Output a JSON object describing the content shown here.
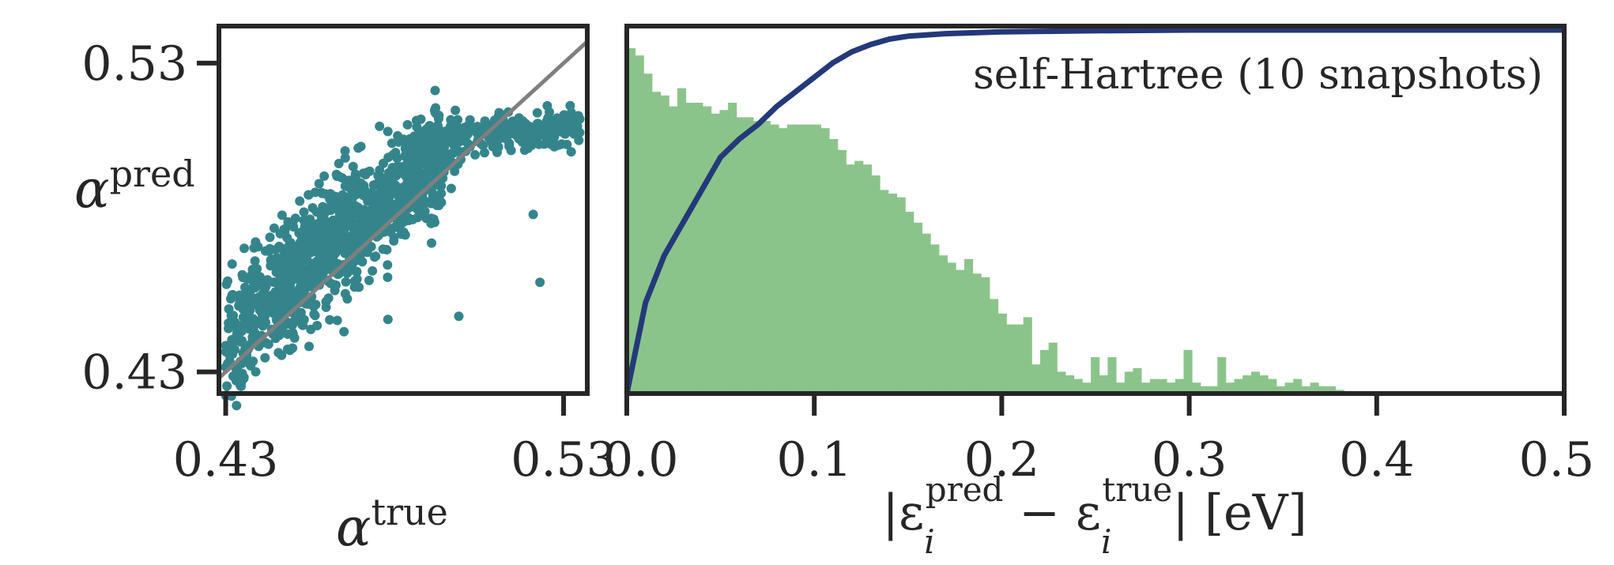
{
  "chart_data": [
    {
      "type": "scatter",
      "xlabel": {
        "symbol": "α",
        "sup": "true"
      },
      "ylabel": {
        "symbol": "α",
        "sup": "pred"
      },
      "xlim": [
        0.428,
        0.537
      ],
      "ylim": [
        0.423,
        0.542
      ],
      "xticks": [
        0.43,
        0.53
      ],
      "xtick_labels": [
        "0.43",
        "0.53"
      ],
      "yticks": [
        0.43,
        0.53
      ],
      "ytick_labels": [
        "0.43",
        "0.53"
      ],
      "reference_line": "y = x",
      "point_color": "#34858b",
      "line_color": "#7f7f7f",
      "clusters": [
        {
          "x_range": [
            0.43,
            0.47
          ],
          "y_range": [
            0.44,
            0.482
          ],
          "count": 520
        },
        {
          "x_range": [
            0.445,
            0.495
          ],
          "y_range": [
            0.455,
            0.5
          ],
          "count": 420
        },
        {
          "x_range": [
            0.47,
            0.5
          ],
          "y_range": [
            0.48,
            0.505
          ],
          "count": 220
        },
        {
          "x_range": [
            0.485,
            0.535
          ],
          "y_range": [
            0.504,
            0.51
          ],
          "count": 240
        }
      ],
      "outliers": [
        [
          0.434,
          0.445
        ],
        [
          0.449,
          0.437
        ],
        [
          0.45,
          0.442
        ],
        [
          0.465,
          0.443
        ],
        [
          0.478,
          0.447
        ],
        [
          0.499,
          0.448
        ],
        [
          0.523,
          0.459
        ],
        [
          0.521,
          0.481
        ],
        [
          0.493,
          0.512
        ],
        [
          0.492,
          0.514
        ],
        [
          0.47,
          0.503
        ],
        [
          0.527,
          0.508
        ]
      ]
    },
    {
      "type": "bar",
      "annotation": "self-Hartree (10 snapshots)",
      "xlabel_parts": {
        "pre": "|ε",
        "sub1": "i",
        "sup1": "pred",
        "mid": " − ε",
        "sub2": "i",
        "sup2": "true",
        "post": "| [eV]"
      },
      "xlim": [
        0.0,
        0.5
      ],
      "xticks": [
        0.0,
        0.1,
        0.2,
        0.3,
        0.4,
        0.5
      ],
      "xtick_labels": [
        "0.0",
        "0.1",
        "0.2",
        "0.3",
        "0.4",
        "0.5"
      ],
      "bar_color": "#8bc48a",
      "cdf_color": "#24397a",
      "bin_width": 0.0045,
      "bar_heights": [
        0.95,
        0.93,
        0.88,
        0.83,
        0.82,
        0.79,
        0.84,
        0.8,
        0.8,
        0.79,
        0.77,
        0.78,
        0.8,
        0.76,
        0.76,
        0.75,
        0.75,
        0.74,
        0.73,
        0.74,
        0.74,
        0.74,
        0.74,
        0.73,
        0.7,
        0.67,
        0.63,
        0.64,
        0.63,
        0.6,
        0.56,
        0.55,
        0.54,
        0.5,
        0.47,
        0.44,
        0.41,
        0.38,
        0.36,
        0.34,
        0.37,
        0.33,
        0.32,
        0.26,
        0.22,
        0.19,
        0.19,
        0.21,
        0.08,
        0.12,
        0.14,
        0.06,
        0.05,
        0.04,
        0.03,
        0.1,
        0.05,
        0.1,
        0.03,
        0.06,
        0.07,
        0.03,
        0.04,
        0.04,
        0.03,
        0.04,
        0.12,
        0.03,
        0.02,
        0.02,
        0.1,
        0.03,
        0.04,
        0.05,
        0.06,
        0.05,
        0.04,
        0.02,
        0.03,
        0.04,
        0.02,
        0.03,
        0.02,
        0.02,
        0.01
      ],
      "cdf": {
        "x": [
          0.0,
          0.01,
          0.02,
          0.03,
          0.04,
          0.05,
          0.06,
          0.07,
          0.08,
          0.09,
          0.1,
          0.11,
          0.12,
          0.13,
          0.14,
          0.15,
          0.17,
          0.2,
          0.25,
          0.3,
          0.4,
          0.5
        ],
        "y": [
          0.0,
          0.25,
          0.38,
          0.47,
          0.56,
          0.65,
          0.7,
          0.74,
          0.79,
          0.83,
          0.87,
          0.91,
          0.94,
          0.96,
          0.975,
          0.983,
          0.99,
          0.995,
          0.998,
          1.0,
          1.0,
          1.0
        ]
      }
    }
  ]
}
